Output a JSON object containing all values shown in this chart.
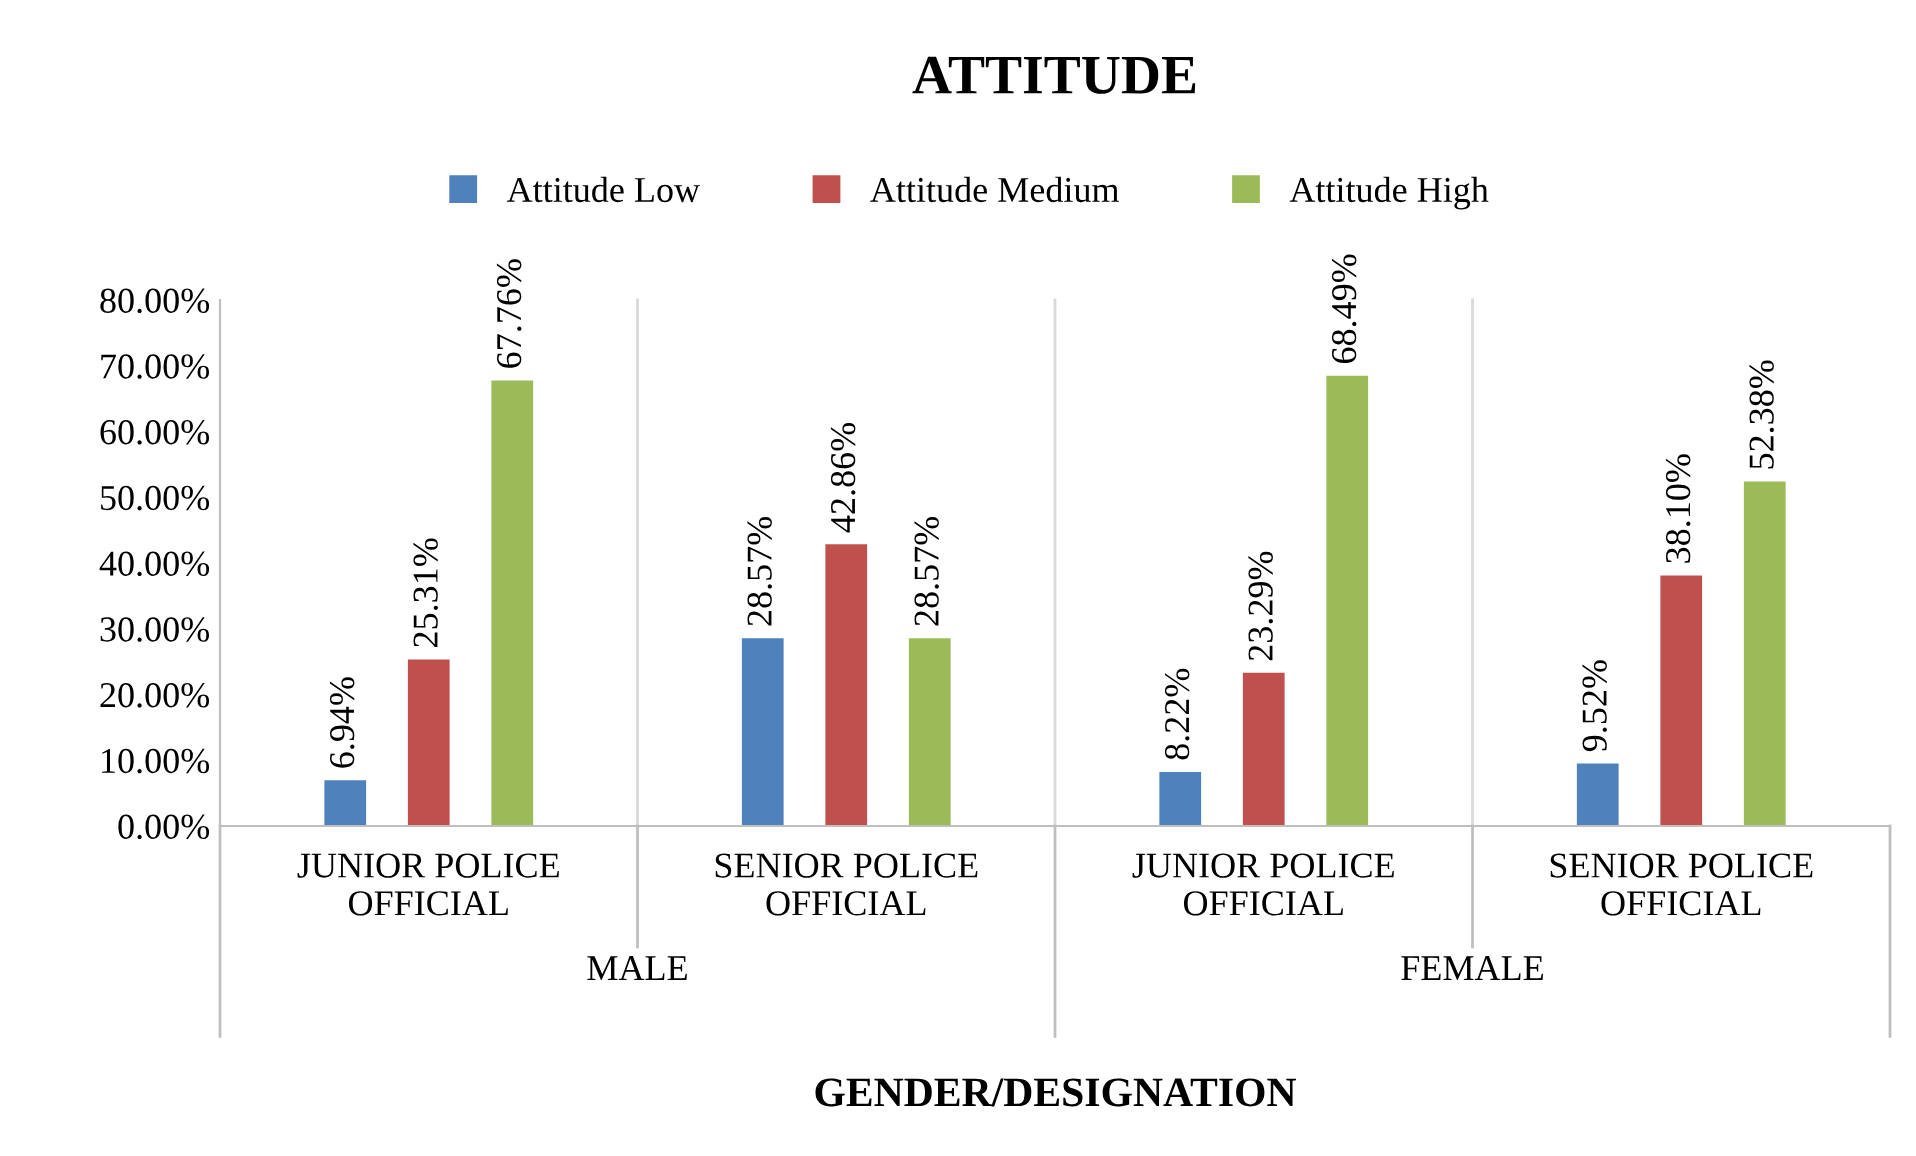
{
  "chart_data": {
    "type": "bar",
    "title": "ATTITUDE",
    "xlabel": "GENDER/DESIGNATION",
    "categories": [
      "JUNIOR POLICE OFFICIAL",
      "SENIOR POLICE OFFICIAL",
      "JUNIOR POLICE OFFICIAL",
      "SENIOR POLICE OFFICIAL"
    ],
    "annotations": [
      "MALE",
      "FEMALE"
    ],
    "series": [
      {
        "name": "Attitude Low",
        "color": "#4f81bd",
        "values": [
          6.94,
          28.57,
          8.22,
          9.52
        ],
        "value_labels": [
          "6.94%",
          "28.57%",
          "8.22%",
          "9.52%"
        ]
      },
      {
        "name": "Attitude Medium",
        "color": "#c0504d",
        "values": [
          25.31,
          42.86,
          23.29,
          38.1
        ],
        "value_labels": [
          "25.31%",
          "42.86%",
          "23.29%",
          "38.10%"
        ]
      },
      {
        "name": "Attitude High",
        "color": "#9bbb59",
        "values": [
          67.76,
          28.57,
          68.49,
          52.38
        ],
        "value_labels": [
          "67.76%",
          "28.57%",
          "68.49%",
          "52.38%"
        ]
      }
    ],
    "ylim": [
      0,
      80
    ],
    "yticks": [
      {
        "value": 0,
        "label": "0.00%"
      },
      {
        "value": 10,
        "label": "10.00%"
      },
      {
        "value": 20,
        "label": "20.00%"
      },
      {
        "value": 30,
        "label": "30.00%"
      },
      {
        "value": 40,
        "label": "40.00%"
      },
      {
        "value": 50,
        "label": "50.00%"
      },
      {
        "value": 60,
        "label": "60.00%"
      },
      {
        "value": 70,
        "label": "70.00%"
      },
      {
        "value": 80,
        "label": "80.00%"
      }
    ],
    "legend": "top",
    "grid": false
  }
}
